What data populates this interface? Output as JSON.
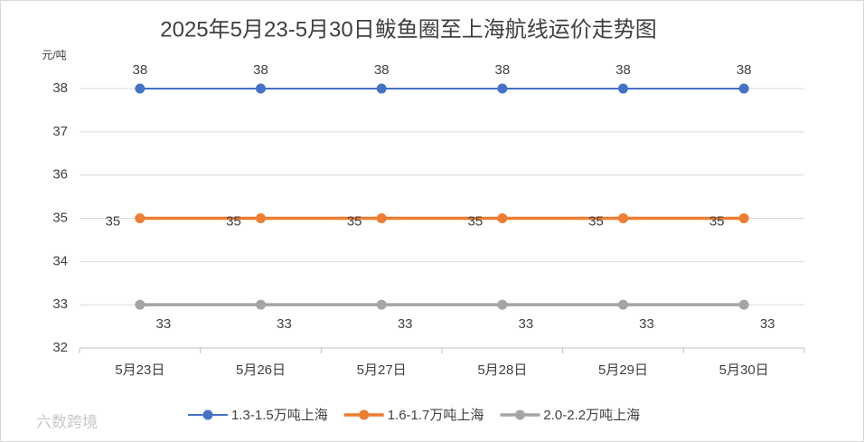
{
  "chart_data": {
    "type": "line",
    "title": "2025年5月23-5月30日鲅鱼圈至上海航线运价走势图",
    "y_label": "元/吨",
    "categories": [
      "5月23日",
      "5月26日",
      "5月27日",
      "5月28日",
      "5月29日",
      "5月30日"
    ],
    "series": [
      {
        "name": "1.3-1.5万吨上海",
        "color": "#4472c4",
        "values": [
          38,
          38,
          38,
          38,
          38,
          38
        ]
      },
      {
        "name": "1.6-1.7万吨上海",
        "color": "#ed7d31",
        "values": [
          35,
          35,
          35,
          35,
          35,
          35
        ]
      },
      {
        "name": "2.0-2.2万吨上海",
        "color": "#a5a5a5",
        "values": [
          33,
          33,
          33,
          33,
          33,
          33
        ]
      }
    ],
    "ylim": [
      32,
      38
    ],
    "yticks": [
      32,
      33,
      34,
      35,
      36,
      37,
      38
    ],
    "grid": true,
    "legend": "bottom"
  },
  "watermark": "六数跨境"
}
